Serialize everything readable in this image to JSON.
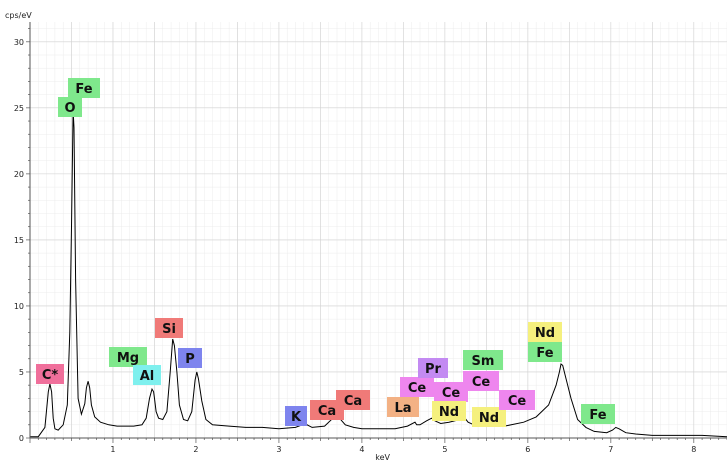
{
  "chart_data": {
    "type": "line",
    "ylabel": "cps/eV",
    "xlabel": "keV",
    "xlim": [
      0,
      8.4
    ],
    "ylim": [
      0,
      31.5
    ],
    "x_ticks": [
      1,
      2,
      3,
      4,
      5,
      6,
      7,
      8
    ],
    "y_ticks": [
      0,
      5,
      10,
      15,
      20,
      25,
      30
    ],
    "grid": true,
    "spectrum": {
      "x": [
        0.0,
        0.1,
        0.18,
        0.22,
        0.24,
        0.26,
        0.28,
        0.3,
        0.34,
        0.4,
        0.45,
        0.48,
        0.5,
        0.52,
        0.53,
        0.55,
        0.58,
        0.62,
        0.66,
        0.68,
        0.7,
        0.72,
        0.74,
        0.78,
        0.85,
        0.95,
        1.05,
        1.15,
        1.25,
        1.35,
        1.4,
        1.44,
        1.47,
        1.49,
        1.5,
        1.52,
        1.55,
        1.6,
        1.65,
        1.69,
        1.72,
        1.74,
        1.77,
        1.8,
        1.85,
        1.9,
        1.95,
        1.99,
        2.01,
        2.03,
        2.07,
        2.12,
        2.2,
        2.4,
        2.6,
        2.8,
        3.0,
        3.2,
        3.28,
        3.31,
        3.34,
        3.4,
        3.55,
        3.65,
        3.69,
        3.73,
        3.8,
        3.9,
        4.0,
        4.2,
        4.4,
        4.55,
        4.64,
        4.66,
        4.7,
        4.78,
        4.84,
        4.88,
        4.95,
        5.05,
        5.18,
        5.23,
        5.28,
        5.35,
        5.45,
        5.55,
        5.65,
        5.72,
        5.8,
        5.95,
        6.1,
        6.25,
        6.34,
        6.38,
        6.4,
        6.42,
        6.46,
        6.52,
        6.6,
        6.7,
        6.8,
        6.95,
        7.02,
        7.06,
        7.1,
        7.18,
        7.3,
        7.5,
        7.8,
        8.1,
        8.4
      ],
      "y": [
        0.1,
        0.1,
        0.8,
        3.5,
        4.1,
        3.5,
        1.5,
        0.7,
        0.6,
        1.0,
        2.5,
        8.0,
        16.0,
        24.8,
        23.5,
        12.0,
        3.0,
        1.8,
        2.6,
        3.8,
        4.3,
        3.8,
        2.5,
        1.6,
        1.2,
        1.0,
        0.9,
        0.9,
        0.9,
        1.0,
        1.5,
        3.0,
        3.7,
        3.5,
        3.0,
        2.0,
        1.5,
        1.4,
        2.0,
        5.0,
        7.5,
        7.0,
        5.0,
        2.5,
        1.4,
        1.3,
        2.0,
        4.4,
        5.0,
        4.5,
        2.8,
        1.4,
        1.0,
        0.9,
        0.8,
        0.8,
        0.7,
        0.8,
        1.0,
        1.2,
        1.0,
        0.8,
        0.9,
        1.5,
        1.8,
        1.5,
        1.0,
        0.8,
        0.7,
        0.7,
        0.7,
        0.9,
        1.2,
        1.0,
        1.0,
        1.3,
        1.5,
        1.3,
        1.1,
        1.2,
        1.4,
        1.6,
        1.2,
        1.0,
        1.0,
        1.2,
        1.0,
        0.9,
        1.0,
        1.2,
        1.6,
        2.5,
        4.0,
        5.0,
        5.6,
        5.5,
        4.5,
        3.0,
        1.4,
        0.8,
        0.5,
        0.4,
        0.6,
        0.8,
        0.7,
        0.4,
        0.3,
        0.2,
        0.2,
        0.2,
        0.1
      ]
    },
    "element_labels": [
      {
        "text": "C*",
        "color": "#f06f9b"
      },
      {
        "text": "O",
        "color": "#7fe88c"
      },
      {
        "text": "Fe",
        "color": "#7fe88c"
      },
      {
        "text": "Mg",
        "color": "#7fe88c"
      },
      {
        "text": "Al",
        "color": "#7ff0ee"
      },
      {
        "text": "Si",
        "color": "#f07a78"
      },
      {
        "text": "P",
        "color": "#7e84ee"
      },
      {
        "text": "K",
        "color": "#7e84ee"
      },
      {
        "text": "Ca",
        "color": "#f07a78"
      },
      {
        "text": "Ca",
        "color": "#f07a78"
      },
      {
        "text": "La",
        "color": "#f3b184"
      },
      {
        "text": "Ce",
        "color": "#ee86ee"
      },
      {
        "text": "Pr",
        "color": "#c38af2"
      },
      {
        "text": "Ce",
        "color": "#ee86ee"
      },
      {
        "text": "Nd",
        "color": "#f5f07e"
      },
      {
        "text": "Sm",
        "color": "#7fe88c"
      },
      {
        "text": "Ce",
        "color": "#ee86ee"
      },
      {
        "text": "Nd",
        "color": "#f5f07e"
      },
      {
        "text": "Ce",
        "color": "#ee86ee"
      },
      {
        "text": "Nd",
        "color": "#f5f07e"
      },
      {
        "text": "Fe",
        "color": "#7fe88c"
      },
      {
        "text": "Fe",
        "color": "#7fe88c"
      }
    ]
  }
}
